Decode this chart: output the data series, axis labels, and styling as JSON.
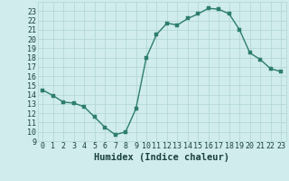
{
  "xlabel": "Humidex (Indice chaleur)",
  "x_values": [
    0,
    1,
    2,
    3,
    4,
    5,
    6,
    7,
    8,
    9,
    10,
    11,
    12,
    13,
    14,
    15,
    16,
    17,
    18,
    19,
    20,
    21,
    22,
    23
  ],
  "y_values": [
    14.5,
    13.9,
    13.2,
    13.1,
    12.7,
    11.6,
    10.5,
    9.7,
    10.0,
    12.5,
    18.0,
    20.5,
    21.7,
    21.5,
    22.2,
    22.7,
    23.3,
    23.2,
    22.7,
    21.0,
    18.5,
    17.8,
    16.8,
    16.5
  ],
  "line_color": "#2d7d6e",
  "marker_color": "#2d7d6e",
  "bg_color": "#d0ecec",
  "grid_color": "#b0d4d4",
  "axis_label_color": "#1a4040",
  "tick_label_color": "#1a4040",
  "ylim": [
    9,
    24
  ],
  "xlim": [
    -0.5,
    23.5
  ],
  "yticks": [
    9,
    10,
    11,
    12,
    13,
    14,
    15,
    16,
    17,
    18,
    19,
    20,
    21,
    22,
    23
  ],
  "xticks": [
    0,
    1,
    2,
    3,
    4,
    5,
    6,
    7,
    8,
    9,
    10,
    11,
    12,
    13,
    14,
    15,
    16,
    17,
    18,
    19,
    20,
    21,
    22,
    23
  ],
  "marker_size": 2.5,
  "line_width": 1.0,
  "xlabel_fontsize": 7.5,
  "tick_fontsize": 6.0
}
